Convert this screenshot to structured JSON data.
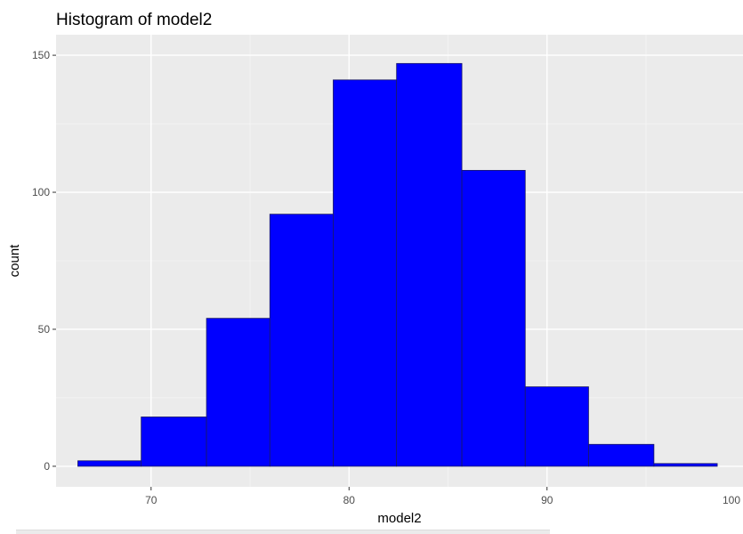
{
  "chart_data": {
    "type": "histogram",
    "title": "Histogram of model2",
    "xlabel": "model2",
    "ylabel": "count",
    "xlim": [
      65.2,
      99.9
    ],
    "ylim": [
      -7.5,
      157.5
    ],
    "x_ticks": [
      70,
      80,
      90,
      100
    ],
    "y_ticks": [
      0,
      50,
      100,
      150
    ],
    "x_tick_labels": [
      "70",
      "80",
      "90",
      "100"
    ],
    "y_tick_labels": [
      "0",
      "50",
      "100",
      "150"
    ],
    "bins": [
      {
        "x0": 66.3,
        "x1": 69.5,
        "count": 2
      },
      {
        "x0": 69.5,
        "x1": 72.8,
        "count": 18
      },
      {
        "x0": 72.8,
        "x1": 76.0,
        "count": 54
      },
      {
        "x0": 76.0,
        "x1": 79.2,
        "count": 92
      },
      {
        "x0": 79.2,
        "x1": 82.4,
        "count": 141
      },
      {
        "x0": 82.4,
        "x1": 85.7,
        "count": 147
      },
      {
        "x0": 85.7,
        "x1": 88.9,
        "count": 108
      },
      {
        "x0": 88.9,
        "x1": 92.1,
        "count": 29
      },
      {
        "x0": 92.1,
        "x1": 95.4,
        "count": 8
      },
      {
        "x0": 95.4,
        "x1": 98.6,
        "count": 1
      }
    ],
    "fill_color": "#0000ff",
    "outline_color": "#1a1a66",
    "panel_background": "#ebebeb",
    "grid": true,
    "grid_color": "#ffffff"
  }
}
